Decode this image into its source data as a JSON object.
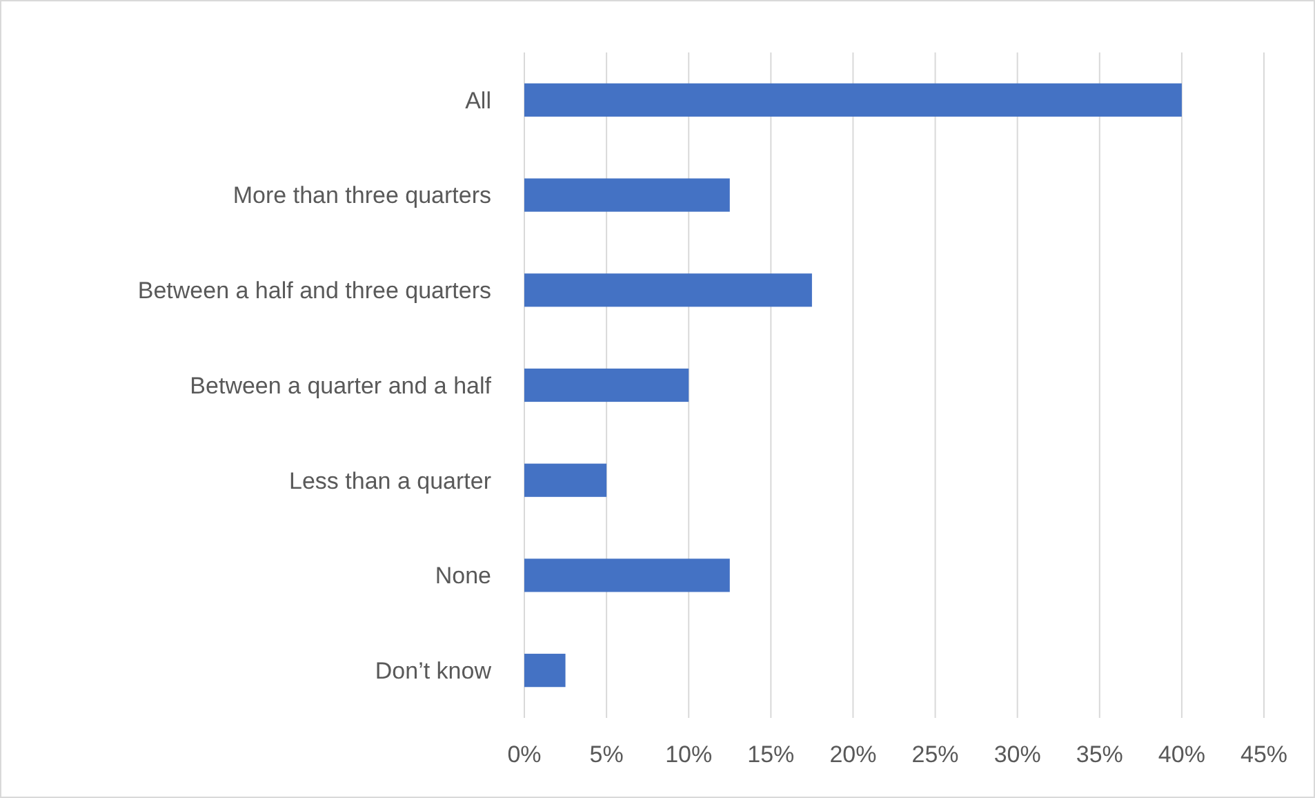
{
  "chart_data": {
    "type": "bar",
    "orientation": "horizontal",
    "categories": [
      "All",
      "More than three quarters",
      "Between a half and three quarters",
      "Between a quarter and a half",
      "Less than a quarter",
      "None",
      "Don’t know"
    ],
    "values": [
      40,
      12.5,
      17.5,
      10,
      5,
      12.5,
      2.5
    ],
    "color": "#4472c4",
    "xlim": [
      0,
      45
    ],
    "xticks": [
      {
        "value": 0,
        "label": "0%"
      },
      {
        "value": 5,
        "label": "5%"
      },
      {
        "value": 10,
        "label": "10%"
      },
      {
        "value": 15,
        "label": "15%"
      },
      {
        "value": 20,
        "label": "20%"
      },
      {
        "value": 25,
        "label": "25%"
      },
      {
        "value": 30,
        "label": "30%"
      },
      {
        "value": 35,
        "label": "35%"
      },
      {
        "value": 40,
        "label": "40%"
      },
      {
        "value": 45,
        "label": "45%"
      }
    ],
    "grid": "x"
  }
}
